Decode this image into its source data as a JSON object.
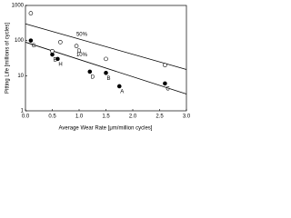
{
  "chart_data": {
    "type": "scatter",
    "x_label": "Average Wear Rate [μm/million cycles]",
    "y_label": "Pitting Life [millions of cycles]",
    "xlim": [
      0,
      3
    ],
    "xticks": [
      {
        "value": 0,
        "label": "0.0"
      },
      {
        "value": 0.5,
        "label": "0.5"
      },
      {
        "value": 1,
        "label": "1.0"
      },
      {
        "value": 1.5,
        "label": "1.5"
      },
      {
        "value": 2,
        "label": "2.0"
      },
      {
        "value": 2.5,
        "label": "2.5"
      },
      {
        "value": 3,
        "label": "3.0"
      }
    ],
    "ylim": [
      1,
      1000
    ],
    "yticks": [
      1,
      10,
      100,
      1000
    ],
    "log_y": true,
    "series": [
      {
        "marker": "filled",
        "color": "#000000",
        "x": [
          0.1,
          0.5,
          0.6,
          1.2,
          1.5,
          1.75,
          2.6
        ],
        "values": [
          100,
          40,
          30,
          13,
          12,
          5,
          6
        ],
        "point_labels": [
          "G",
          "E",
          "H",
          "D",
          "B",
          "A",
          "C"
        ]
      },
      {
        "marker": "open",
        "color": "#000000",
        "x": [
          0.1,
          0.5,
          0.65,
          0.95,
          1.5,
          2.6
        ],
        "values": [
          600,
          50,
          90,
          70,
          30,
          20
        ],
        "point_labels": [
          null,
          null,
          null,
          "D",
          null,
          null
        ]
      }
    ],
    "lines": [
      {
        "label": "50%",
        "x": [
          0,
          3
        ],
        "values": [
          300,
          15
        ]
      },
      {
        "label": "10%",
        "x": [
          0,
          3
        ],
        "values": [
          90,
          3
        ]
      }
    ]
  }
}
